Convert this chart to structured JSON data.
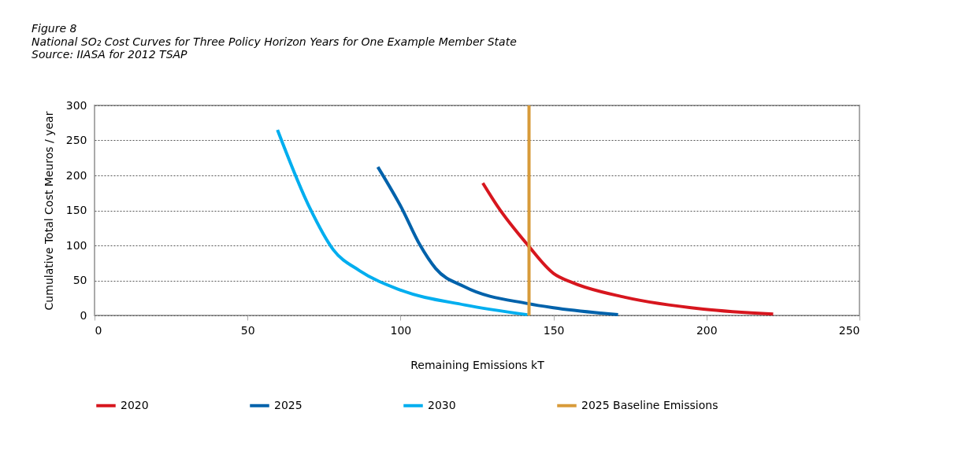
{
  "chart_data": {
    "type": "line",
    "title": "Figure 8",
    "subtitle": "National SO₂ Cost Curves for Three Policy Horizon Years for One Example Member State",
    "annotations": [
      "Source: IIASA for 2012 TSAP"
    ],
    "xlabel": "Remaining Emissions kT",
    "ylabel": "Cumulative Total Cost Meuros / year",
    "xlim": [
      0,
      250
    ],
    "xticks": [
      0,
      50,
      100,
      150,
      200,
      250
    ],
    "ylim": [
      0,
      300
    ],
    "yticks": [
      0,
      50,
      100,
      150,
      200,
      250,
      300
    ],
    "grid": "y",
    "legend": "bottom",
    "marker": "none",
    "line_style": "solid",
    "series": [
      {
        "name": "2020",
        "color": "#d7161e",
        "x": [
          126.9,
          132,
          141.5,
          150,
          156.1,
          173.3,
          199,
          221.8
        ],
        "values": [
          189,
          154,
          101,
          60,
          47,
          26,
          9,
          2
        ]
      },
      {
        "name": "2025",
        "color": "#0062ab",
        "x": [
          92.6,
          100.3,
          106.3,
          111.5,
          120.9,
          141.5,
          150,
          171.1
        ],
        "values": [
          212,
          154,
          101,
          67,
          41,
          17,
          11,
          1
        ]
      },
      {
        "name": "2030",
        "color": "#00aeef",
        "x": [
          59.8,
          70.3,
          78,
          86.6,
          99.5,
          120.9,
          141.5
        ],
        "values": [
          265,
          154,
          94,
          64,
          37,
          15,
          1
        ]
      }
    ],
    "ref_lines": [
      {
        "axis": "x",
        "value": 142,
        "label": "2025 Baseline Emissions",
        "color": "#d89b3a"
      }
    ]
  }
}
